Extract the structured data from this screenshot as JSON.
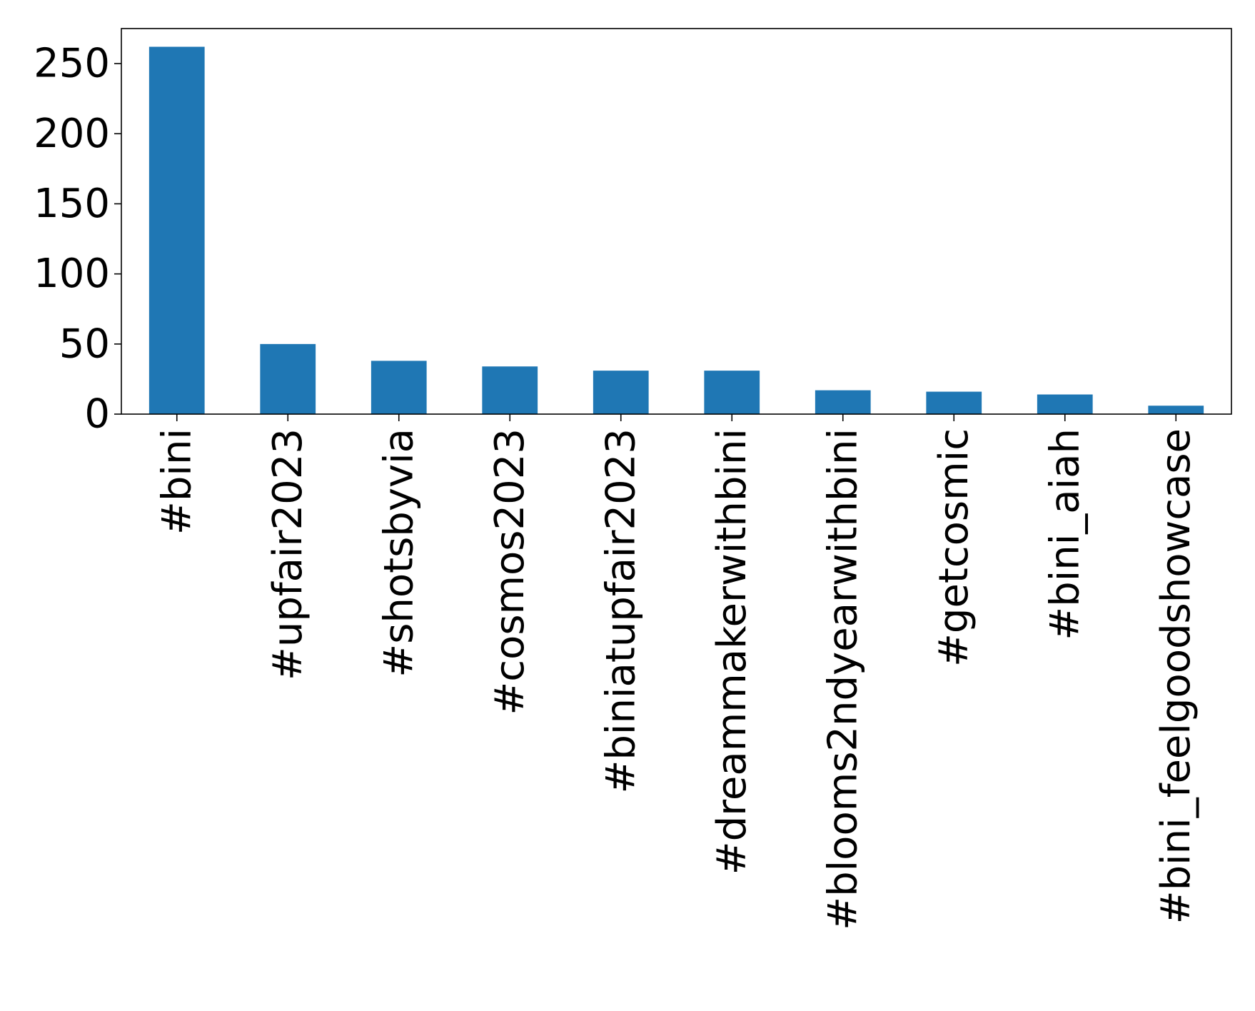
{
  "chart_data": {
    "type": "bar",
    "title": "",
    "xlabel": "",
    "ylabel": "",
    "categories": [
      "#bini",
      "#upfair2023",
      "#shotsbyvia",
      "#cosmos2023",
      "#biniatupfair2023",
      "#dreammakerwithbini",
      "#blooms2ndyearwithbini",
      "#getcosmic",
      "#bini_aiah",
      "#bini_feelgoodshowcase"
    ],
    "values": [
      262,
      50,
      38,
      34,
      31,
      31,
      17,
      16,
      14,
      6
    ],
    "ylim": [
      0,
      275
    ],
    "yticks": [
      0,
      50,
      100,
      150,
      200,
      250
    ],
    "ytick_labels": [
      "0",
      "50",
      "100",
      "150",
      "200",
      "250"
    ],
    "bar_color": "#1f77b4",
    "grid": false,
    "legend": "none"
  }
}
